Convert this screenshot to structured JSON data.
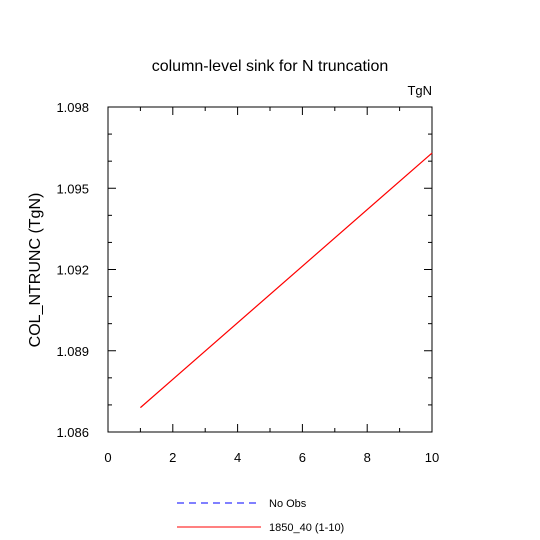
{
  "chart_data": {
    "type": "line",
    "title": "column-level sink for N truncation",
    "units_label": "TgN",
    "ylabel": "COL_NTRUNC  (TgN)",
    "xlabel": "",
    "xlim": [
      0,
      10
    ],
    "ylim": [
      1.086,
      1.098
    ],
    "x_ticks": [
      "0",
      "2",
      "4",
      "6",
      "8",
      "10"
    ],
    "y_ticks": [
      "1.086",
      "1.089",
      "1.092",
      "1.095",
      "1.098"
    ],
    "grid": false,
    "legend_position": "bottom",
    "series": [
      {
        "name": "No Obs",
        "style": "dashed",
        "color": "#0000ff",
        "x": [],
        "y": []
      },
      {
        "name": "1850_40 (1-10)",
        "style": "solid",
        "color": "#ff0000",
        "x": [
          1,
          10
        ],
        "y": [
          1.0869,
          1.0963
        ]
      }
    ]
  }
}
